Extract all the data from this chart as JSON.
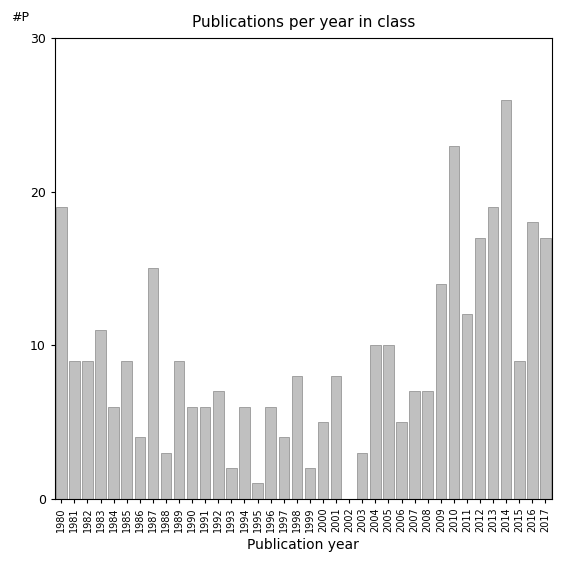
{
  "title": "Publications per year in class",
  "xlabel": "Publication year",
  "ylabel": "#P",
  "years": [
    1980,
    1981,
    1982,
    1983,
    1984,
    1985,
    1986,
    1987,
    1988,
    1989,
    1990,
    1991,
    1992,
    1993,
    1994,
    1995,
    1996,
    1997,
    1998,
    1999,
    2000,
    2001,
    2002,
    2003,
    2004,
    2005,
    2006,
    2007,
    2008,
    2009,
    2010,
    2011,
    2012,
    2013,
    2014,
    2015,
    2016,
    2017
  ],
  "values": [
    19,
    9,
    9,
    11,
    6,
    9,
    4,
    15,
    3,
    9,
    6,
    6,
    7,
    2,
    6,
    1,
    6,
    4,
    8,
    2,
    5,
    8,
    0,
    3,
    10,
    10,
    5,
    7,
    7,
    14,
    23,
    12,
    17,
    19,
    26,
    9,
    18,
    17
  ],
  "bar_color": "#c0c0c0",
  "bar_edgecolor": "#888888",
  "ylim": [
    0,
    30
  ],
  "yticks": [
    0,
    10,
    20,
    30
  ],
  "background_color": "#ffffff",
  "figsize": [
    5.67,
    5.67
  ],
  "dpi": 100
}
